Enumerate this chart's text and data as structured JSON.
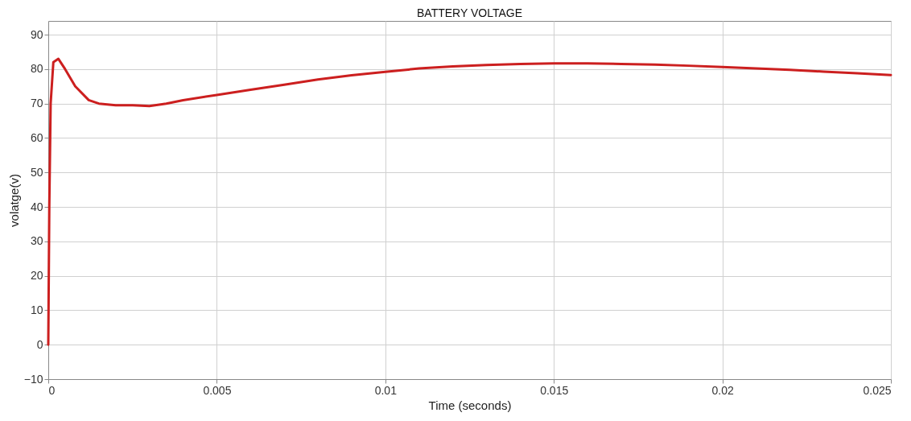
{
  "chart_data": {
    "type": "line",
    "title": "BATTERY VOLTAGE",
    "xlabel": "Time (seconds)",
    "ylabel": "volatge(v)",
    "x": [
      0,
      3e-05,
      7e-05,
      0.00015,
      0.0003,
      0.0005,
      0.0008,
      0.0012,
      0.0015,
      0.002,
      0.0025,
      0.003,
      0.0035,
      0.004,
      0.005,
      0.006,
      0.007,
      0.008,
      0.009,
      0.01,
      0.011,
      0.012,
      0.013,
      0.014,
      0.015,
      0.016,
      0.017,
      0.018,
      0.019,
      0.02,
      0.021,
      0.022,
      0.023,
      0.024,
      0.025
    ],
    "series": [
      {
        "color": "#cc1f1f",
        "values": [
          0,
          40,
          70,
          82,
          83,
          80,
          75,
          71,
          70,
          69.5,
          69.5,
          69.3,
          70,
          71,
          72.5,
          74,
          75.5,
          77,
          78.2,
          79.2,
          80.2,
          80.8,
          81.2,
          81.5,
          81.7,
          81.7,
          81.5,
          81.3,
          81,
          80.6,
          80.2,
          79.8,
          79.3,
          78.8,
          78.3
        ]
      }
    ],
    "xlim": [
      0,
      0.025
    ],
    "xticks": [
      0,
      0.005,
      0.01,
      0.015,
      0.02,
      0.025
    ],
    "ylim": [
      -10,
      94
    ],
    "yticks": [
      -10,
      0,
      10,
      20,
      30,
      40,
      50,
      60,
      70,
      80,
      90
    ],
    "grid": true,
    "line_style": "solid",
    "marker": "none"
  }
}
